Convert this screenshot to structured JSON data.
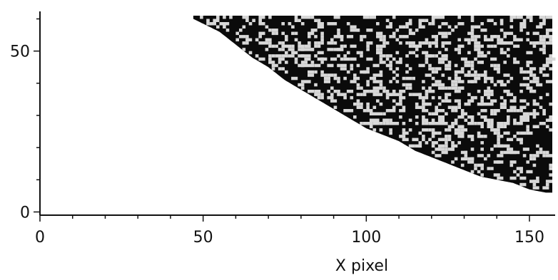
{
  "chart_data": {
    "type": "heatmap",
    "title": "",
    "xlabel": "X pixel",
    "ylabel": "",
    "xlim": [
      0,
      157
    ],
    "ylim": [
      -1,
      61
    ],
    "x_ticks": [
      0,
      50,
      100,
      150
    ],
    "y_ticks": [
      0,
      50
    ],
    "x_tick_labels": [
      "0",
      "50",
      "100",
      "150"
    ],
    "y_tick_labels": [
      "0",
      "50"
    ],
    "grid": false,
    "legend": "none",
    "region": {
      "description": "filled pixel region bounded below by a curve; right of boundary is densely noisy dark pixels",
      "boundary_x": [
        47,
        55,
        60,
        65,
        70,
        75,
        80,
        85,
        90,
        95,
        100,
        105,
        110,
        115,
        120,
        125,
        130,
        135,
        140,
        145,
        150,
        155
      ],
      "boundary_y": [
        60,
        56,
        52,
        48,
        45,
        41,
        38,
        35,
        32,
        29,
        26,
        24,
        22,
        19,
        17,
        15,
        13,
        11,
        10,
        9,
        7,
        6
      ],
      "fill_density": 0.72
    },
    "colors": {
      "dark": "#0b0b0b",
      "light": "#d8d8d8",
      "axis": "#111111"
    }
  }
}
